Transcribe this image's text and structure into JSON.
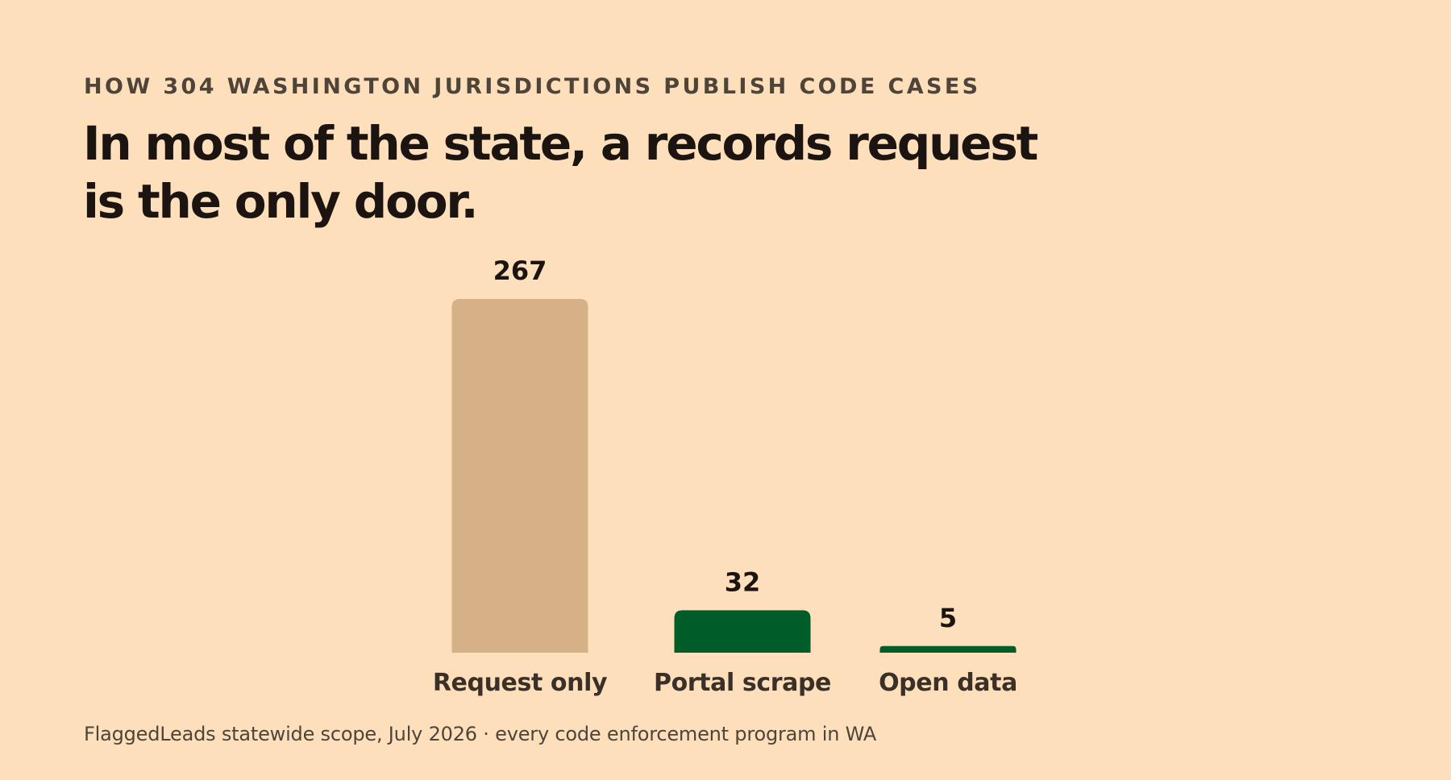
{
  "kicker": "HOW 304 WASHINGTON JURISDICTIONS PUBLISH CODE CASES",
  "headline": {
    "line1": "In most of the state, a records request",
    "line2": "is the only door."
  },
  "footnote": "FlaggedLeads statewide scope, July 2026 · every code enforcement program in WA",
  "colors": {
    "background": "#FEDFBB",
    "request_only": "#D6B086",
    "portal": "#005C28"
  },
  "chart_data": {
    "type": "bar",
    "title": "In most of the state, a records request is the only door.",
    "subtitle": "HOW 304 WASHINGTON JURISDICTIONS PUBLISH CODE CASES",
    "xlabel": "",
    "ylabel": "",
    "categories": [
      "Request only",
      "Portal scrape",
      "Open data"
    ],
    "values": [
      267,
      32,
      5
    ],
    "bar_colors": [
      "#D6B086",
      "#005C28",
      "#005C28"
    ],
    "ylim": [
      0,
      267
    ],
    "grid": false,
    "legend": "none"
  }
}
